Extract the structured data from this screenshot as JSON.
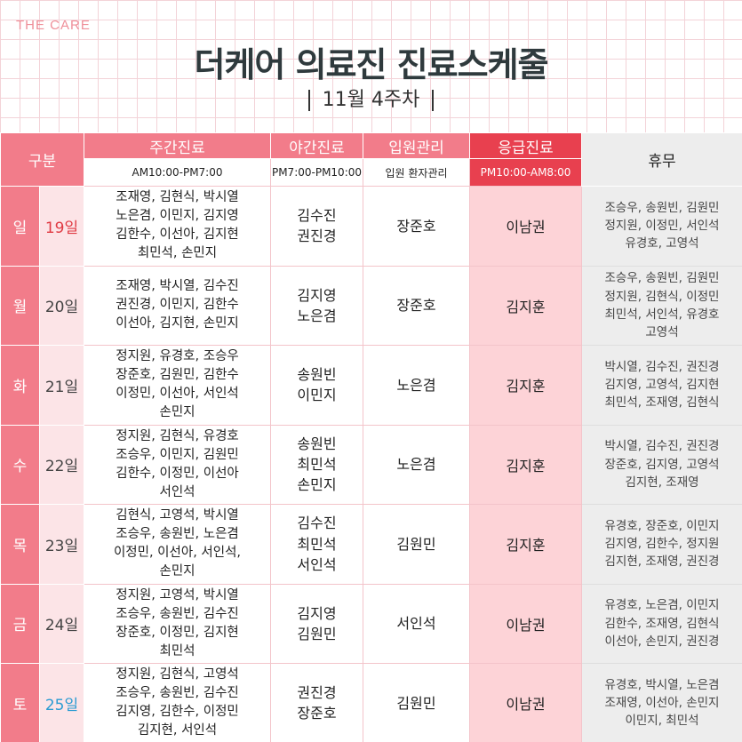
{
  "brand": "THE CARE",
  "title": "더케어 의료진 진료스케줄",
  "subtitle": "11월 4주차",
  "header": {
    "gubun": "구분",
    "day_label": "주간진료",
    "day_time": "AM10:00-PM7:00",
    "night_label": "야간진료",
    "night_time": "PM7:00-PM10:00",
    "ward_label": "입원관리",
    "ward_sub": "입원 환자관리",
    "emergency_label": "응급진료",
    "emergency_time": "PM10:00-AM8:00",
    "off_label": "휴무"
  },
  "rows": [
    {
      "dow": "일",
      "date": "19일",
      "day": [
        "조재영, 김현식, 박시열",
        "노은겸, 이민지, 김지영",
        "김한수, 이선아, 김지현",
        "최민석, 손민지"
      ],
      "night": [
        "김수진",
        "권진경"
      ],
      "ward": "장준호",
      "emergency": "이남권",
      "off": [
        "조승우, 송원빈, 김원민",
        "정지원, 이정민, 서인석",
        "유경호, 고영석"
      ]
    },
    {
      "dow": "월",
      "date": "20일",
      "day": [
        "조재영, 박시열, 김수진",
        "권진경, 이민지, 김한수",
        "이선아, 김지현, 손민지"
      ],
      "night": [
        "김지영",
        "노은겸"
      ],
      "ward": "장준호",
      "emergency": "김지훈",
      "off": [
        "조승우, 송원빈, 김원민",
        "정지원, 김현식, 이정민",
        "최민석, 서인석, 유경호",
        "고영석"
      ]
    },
    {
      "dow": "화",
      "date": "21일",
      "day": [
        "정지원, 유경호, 조승우",
        "장준호, 김원민, 김한수",
        "이정민, 이선아, 서인석",
        "손민지"
      ],
      "night": [
        "송원빈",
        "이민지"
      ],
      "ward": "노은겸",
      "emergency": "김지훈",
      "off": [
        "박시열, 김수진, 권진경",
        "김지영, 고영석, 김지현",
        "최민석, 조재영, 김현식"
      ]
    },
    {
      "dow": "수",
      "date": "22일",
      "day": [
        "정지원, 김현식, 유경호",
        "조승우, 이민지, 김원민",
        "김한수, 이정민, 이선아",
        "서인석"
      ],
      "night": [
        "송원빈",
        "최민석",
        "손민지"
      ],
      "ward": "노은겸",
      "emergency": "김지훈",
      "off": [
        "박시열, 김수진, 권진경",
        "장준호, 김지영, 고영석",
        "김지현, 조재영"
      ]
    },
    {
      "dow": "목",
      "date": "23일",
      "day": [
        "김현식, 고영석, 박시열",
        "조승우, 송원빈, 노은겸",
        "이정민, 이선아, 서인석,",
        "손민지"
      ],
      "night": [
        "김수진",
        "최민석",
        "서인석"
      ],
      "ward": "김원민",
      "emergency": "김지훈",
      "off": [
        "유경호, 장준호, 이민지",
        "김지영, 김한수, 정지원",
        "김지현, 조재영, 권진경"
      ]
    },
    {
      "dow": "금",
      "date": "24일",
      "day": [
        "정지원, 고영석, 박시열",
        "조승우, 송원빈, 김수진",
        "장준호, 이정민, 김지현",
        "최민석"
      ],
      "night": [
        "김지영",
        "김원민"
      ],
      "ward": "서인석",
      "emergency": "이남권",
      "off": [
        "유경호, 노은겸, 이민지",
        "김한수, 조재영, 김현식",
        "이선아, 손민지, 권진경"
      ]
    },
    {
      "dow": "토",
      "date": "25일",
      "day": [
        "정지원, 김현식, 고영석",
        "조승우, 송원빈, 김수진",
        "김지영, 김한수, 이정민",
        "김지현, 서인석"
      ],
      "night": [
        "권진경",
        "장준호"
      ],
      "ward": "김원민",
      "emergency": "이남권",
      "off": [
        "유경호, 박시열, 노은겸",
        "조재영, 이선아, 손민지",
        "이민지, 최민석"
      ]
    }
  ],
  "colors": {
    "header_pink": "#f27c8a",
    "emergency_red": "#e8404f",
    "emergency_cell": "#fdd3d7",
    "off_gray": "#ededed",
    "sunday_red": "#e03a43",
    "saturday_blue": "#2a9bd2"
  }
}
